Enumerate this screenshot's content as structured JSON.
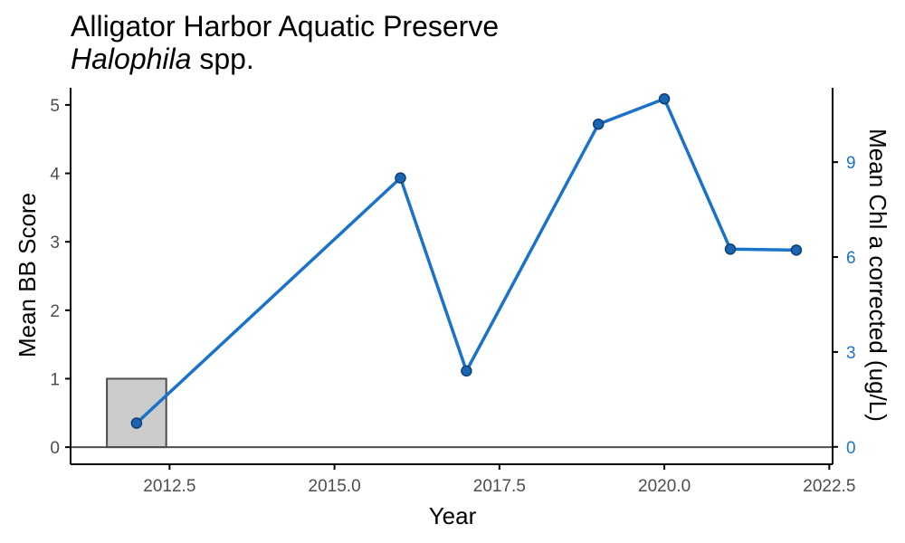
{
  "chart_data": {
    "type": "bar+line",
    "title": "Alligator Harbor Aquatic Preserve",
    "subtitle_italic": "Halophila",
    "subtitle_rest": " spp.",
    "xlabel": "Year",
    "ylabel": "Mean BB Score",
    "y2label": "Mean Chl a corrected (ug/L)",
    "xlim": [
      2011.0,
      2022.55
    ],
    "ylim": [
      -0.25,
      5.25
    ],
    "y2lim": [
      -0.55,
      11.35
    ],
    "x_ticks": [
      2012.5,
      2015.0,
      2017.5,
      2020.0,
      2022.5
    ],
    "x_tick_labels": [
      "2012.5",
      "2015.0",
      "2017.5",
      "2020.0",
      "2022.5"
    ],
    "y_ticks": [
      0,
      1,
      2,
      3,
      4,
      5
    ],
    "y_tick_labels": [
      "0",
      "1",
      "2",
      "3",
      "4",
      "5"
    ],
    "y2_ticks": [
      0,
      3,
      6,
      9
    ],
    "y2_tick_labels": [
      "0",
      "3",
      "6",
      "9"
    ],
    "bars": {
      "series_name": "Mean BB Score",
      "x": [
        2012
      ],
      "values": [
        1
      ],
      "width": 0.9,
      "fill": "#cccccc",
      "stroke": "#4d4d4d"
    },
    "line": {
      "series_name": "Mean Chl a corrected (ug/L)",
      "x": [
        2012,
        2016,
        2017,
        2019,
        2020,
        2021,
        2022
      ],
      "values": [
        0.75,
        8.5,
        2.4,
        10.2,
        11.0,
        6.25,
        6.22
      ],
      "color": "#1a73c8",
      "marker_fill": "#1a66b3",
      "marker_stroke": "#0d3f73"
    },
    "grid": false,
    "legend": "none",
    "colors": {
      "axis": "#000000",
      "zero_line": "#4d4d4d",
      "right_axis": "#1a73c8",
      "tick_label": "#4d4d4d"
    }
  }
}
